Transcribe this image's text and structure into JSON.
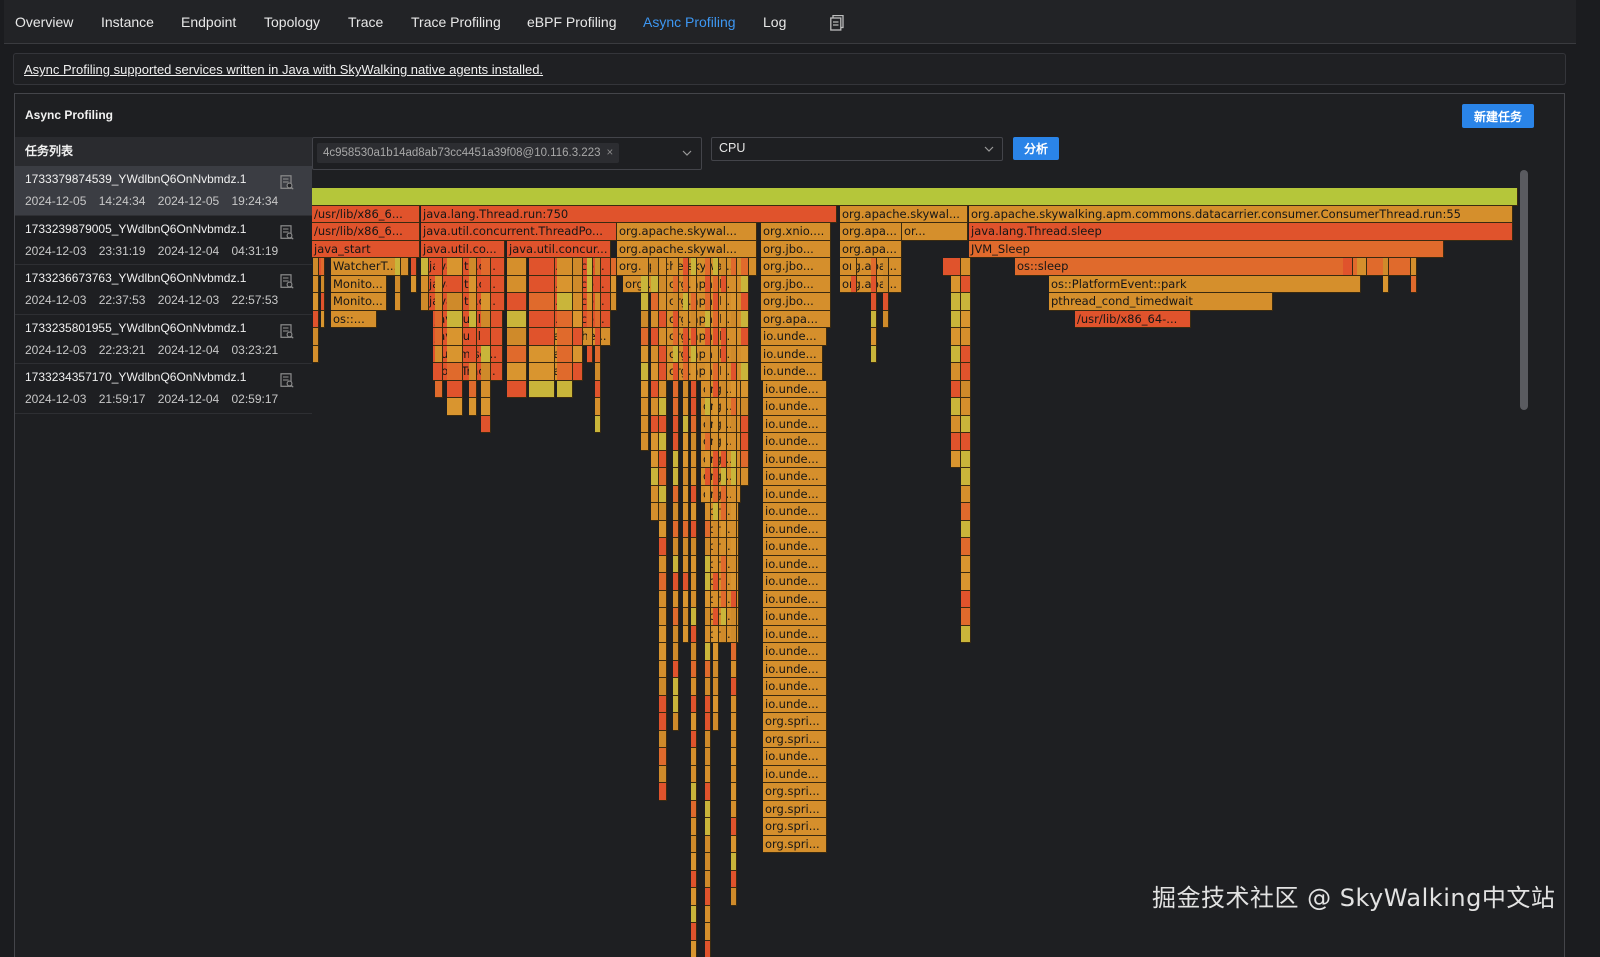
{
  "nav": {
    "tabs": [
      {
        "label": "Overview",
        "active": false
      },
      {
        "label": "Instance",
        "active": false
      },
      {
        "label": "Endpoint",
        "active": false
      },
      {
        "label": "Topology",
        "active": false
      },
      {
        "label": "Trace",
        "active": false
      },
      {
        "label": "Trace Profiling",
        "active": false
      },
      {
        "label": "eBPF Profiling",
        "active": false
      },
      {
        "label": "Async Profiling",
        "active": true
      },
      {
        "label": "Log",
        "active": false
      }
    ],
    "extra_icon": "document-copy-icon",
    "active_color": "#3d97f2"
  },
  "notice": {
    "text": "Async Profiling supported services written in Java with SkyWalking native agents installed."
  },
  "panel": {
    "title": "Async Profiling",
    "new_task_label": "新建任务"
  },
  "task_list": {
    "header": "任务列表",
    "tasks": [
      {
        "id": "1733379874539_YWdlbnQ6OnNvbmdz.1",
        "start": "2024-12-05 14:24:34",
        "end": "2024-12-05 19:24:34",
        "selected": true,
        "icon": "task-log-icon"
      },
      {
        "id": "1733239879005_YWdlbnQ6OnNvbmdz.1",
        "start": "2024-12-03 23:31:19",
        "end": "2024-12-04 04:31:19",
        "selected": false,
        "icon": "task-log-icon"
      },
      {
        "id": "1733236673763_YWdlbnQ6OnNvbmdz.1",
        "start": "2024-12-03 22:37:53",
        "end": "2024-12-03 22:57:53",
        "selected": false,
        "icon": "task-log-icon"
      },
      {
        "id": "1733235801955_YWdlbnQ6OnNvbmdz.1",
        "start": "2024-12-03 22:23:21",
        "end": "2024-12-04 03:23:21",
        "selected": false,
        "icon": "task-log-icon"
      },
      {
        "id": "1733234357170_YWdlbnQ6OnNvbmdz.1",
        "start": "2024-12-03 21:59:17",
        "end": "2024-12-04 02:59:17",
        "selected": false,
        "icon": "task-log-icon"
      }
    ]
  },
  "controls": {
    "instance_chip": "4c958530a1b14ad8ab73cc4451a39f08@10.116.3.223",
    "event_type": "CPU",
    "analyze_label": "分析"
  },
  "flamegraph": {
    "labeled_frames": [
      {
        "label": "/usr/lib/x86_6...",
        "color": "#e0532c"
      },
      {
        "label": "java.lang.Thread.run:750",
        "color": "#e0532c"
      },
      {
        "label": "org.apache.skywal...",
        "color": "#d58f2c"
      },
      {
        "label": "org.apache.skywalking.apm.commons.datacarrier.consumer.ConsumerThread.run:55",
        "color": "#d58f2c"
      },
      {
        "label": "/usr/lib/x86_6...",
        "color": "#e0532c"
      },
      {
        "label": "java.util.concurrent.ThreadPo...",
        "color": "#e0532c"
      },
      {
        "label": "org.apache.skywal...",
        "color": "#d58f2c"
      },
      {
        "label": "org.xnio....",
        "color": "#d58f2c"
      },
      {
        "label": "org.apa...",
        "color": "#d58f2c"
      },
      {
        "label": "or...",
        "color": "#d58f2c"
      },
      {
        "label": "java.lang.Thread.sleep",
        "color": "#e0532c"
      },
      {
        "label": "java_start",
        "color": "#e0532c"
      },
      {
        "label": "java.util.co...",
        "color": "#e0532c"
      },
      {
        "label": "java.util.concur...",
        "color": "#e0532c"
      },
      {
        "label": "org.apache.skywal...",
        "color": "#d58f2c"
      },
      {
        "label": "org.jbo...",
        "color": "#d58f2c"
      },
      {
        "label": "org.apa...",
        "color": "#d58f2c"
      },
      {
        "label": "JVM_Sleep",
        "color": "#e06a2c"
      },
      {
        "label": "WatcherT...",
        "color": "#d58f2c"
      },
      {
        "label": "java.util.c...",
        "color": "#e0532c"
      },
      {
        "label": "java.util.co...",
        "color": "#e0532c"
      },
      {
        "label": "org.apache.skywal...",
        "color": "#d58f2c"
      },
      {
        "label": "org.jbo...",
        "color": "#d58f2c"
      },
      {
        "label": "org.apa...",
        "color": "#d58f2c"
      },
      {
        "label": "os::sleep",
        "color": "#e06a2c"
      },
      {
        "label": "Monito...",
        "color": "#d58f2c"
      },
      {
        "label": "java.util.c...",
        "color": "#e0532c"
      },
      {
        "label": "java.util.co...",
        "color": "#e0532c"
      },
      {
        "label": "org...",
        "color": "#d58f2c"
      },
      {
        "label": "org.apach...",
        "color": "#d58f2c"
      },
      {
        "label": "org.jbo...",
        "color": "#d58f2c"
      },
      {
        "label": "org.apa...",
        "color": "#d58f2c"
      },
      {
        "label": "os::PlatformEvent::park",
        "color": "#d58f2c"
      },
      {
        "label": "Monito...",
        "color": "#d58f2c"
      },
      {
        "label": "java.util.c...",
        "color": "#e0532c"
      },
      {
        "label": "java.util.co...",
        "color": "#e0532c"
      },
      {
        "label": "org.apach...",
        "color": "#d58f2c"
      },
      {
        "label": "org.jbo...",
        "color": "#d58f2c"
      },
      {
        "label": "pthread_cond_timedwait",
        "color": "#d58f2c"
      },
      {
        "label": "os::...",
        "color": "#d58f2c"
      },
      {
        "label": "java.util...",
        "color": "#e0532c"
      },
      {
        "label": "java.util.co...",
        "color": "#e0532c"
      },
      {
        "label": "org.apach...",
        "color": "#d58f2c"
      },
      {
        "label": "org.apa...",
        "color": "#d58f2c"
      },
      {
        "label": "/usr/lib/x86_64-...",
        "color": "#e0532c"
      },
      {
        "label": "java.util...",
        "color": "#e0532c"
      },
      {
        "label": "org.apache...",
        "color": "#d58f2c"
      },
      {
        "label": "org.apach...",
        "color": "#d58f2c"
      },
      {
        "label": "io.unde...",
        "color": "#d58f2c"
      },
      {
        "label": "sun.misc...",
        "color": "#e0532c"
      },
      {
        "label": "org.a...",
        "color": "#d58f2c"
      },
      {
        "label": "org.apach...",
        "color": "#d58f2c"
      },
      {
        "label": "io.unde...",
        "color": "#d58f2c"
      },
      {
        "label": "LockTrac...",
        "color": "#e0532c"
      },
      {
        "label": "org.a...",
        "color": "#d58f2c"
      },
      {
        "label": "org.apach...",
        "color": "#d58f2c"
      },
      {
        "label": "io.unde...",
        "color": "#d58f2c"
      },
      {
        "label": "org....",
        "color": "#d58f2c"
      },
      {
        "label": "or...",
        "color": "#d58f2c"
      },
      {
        "label": "org.spri...",
        "color": "#d58f2c"
      }
    ]
  },
  "watermark": "掘金技术社区 @ SkyWalking中文站"
}
